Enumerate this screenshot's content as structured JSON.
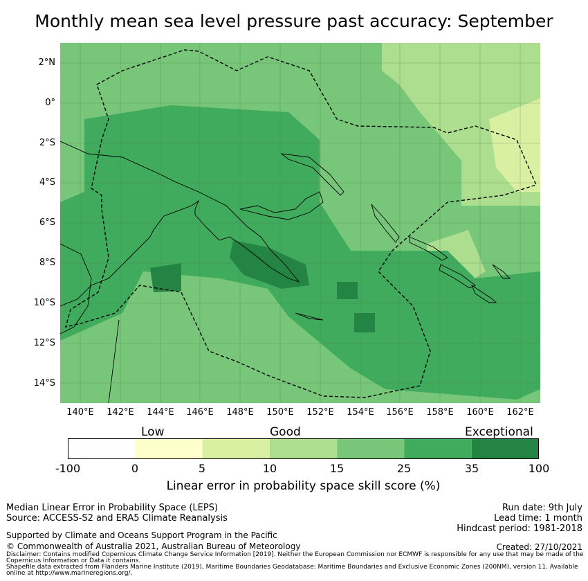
{
  "title": "Monthly mean sea level pressure past accuracy: September",
  "map": {
    "lat_labels": [
      "2°N",
      "0°",
      "2°S",
      "4°S",
      "6°S",
      "8°S",
      "10°S",
      "12°S",
      "14°S"
    ],
    "lon_labels": [
      "140°E",
      "142°E",
      "144°E",
      "146°E",
      "148°E",
      "150°E",
      "152°E",
      "154°E",
      "156°E",
      "158°E",
      "160°E",
      "162°E"
    ],
    "lat_range": [
      -15,
      3
    ],
    "lon_range": [
      139,
      163
    ]
  },
  "colorbar": {
    "categories": [
      "Low",
      "Good",
      "Exceptional"
    ],
    "tick_labels": [
      "-100",
      "0",
      "5",
      "10",
      "15",
      "25",
      "35",
      "100"
    ],
    "colors": [
      "#ffffff",
      "#ffffcc",
      "#d9f0a3",
      "#addd8e",
      "#78c679",
      "#41ab5d",
      "#238443"
    ],
    "label": "Linear error in probability space skill score (%)"
  },
  "footer": {
    "method": "Median Linear Error in Probability Space (LEPS)",
    "source": "Source: ACCESS-S2 and ERA5 Climate Reanalysis",
    "support": "Supported by Climate and Oceans Support Program in the Pacific",
    "copyright": "© Commonwealth of Australia 2021, Australian Bureau of Meteorology",
    "disclaimer": "Disclaimer: Contains modified Copernicus Climate Change Service Information [2019]. Neither the European Commission nor ECMWF is responsible for any use that may be made of the Copernicus Information or Data it contains.",
    "shapefile": "Shapefile data extracted from Flanders Marine Institute (2019), Maritime Boundaries Geodatabase: Maritime Boundaries and Exclusive Economic Zones (200NM), version 11. Available online at http://www.marineregions.org/.",
    "run_date": "Run date: 9th July",
    "lead_time": "Lead time: 1 month",
    "hindcast": "Hindcast period: 1981-2018",
    "created": "Created: 27/10/2021"
  }
}
